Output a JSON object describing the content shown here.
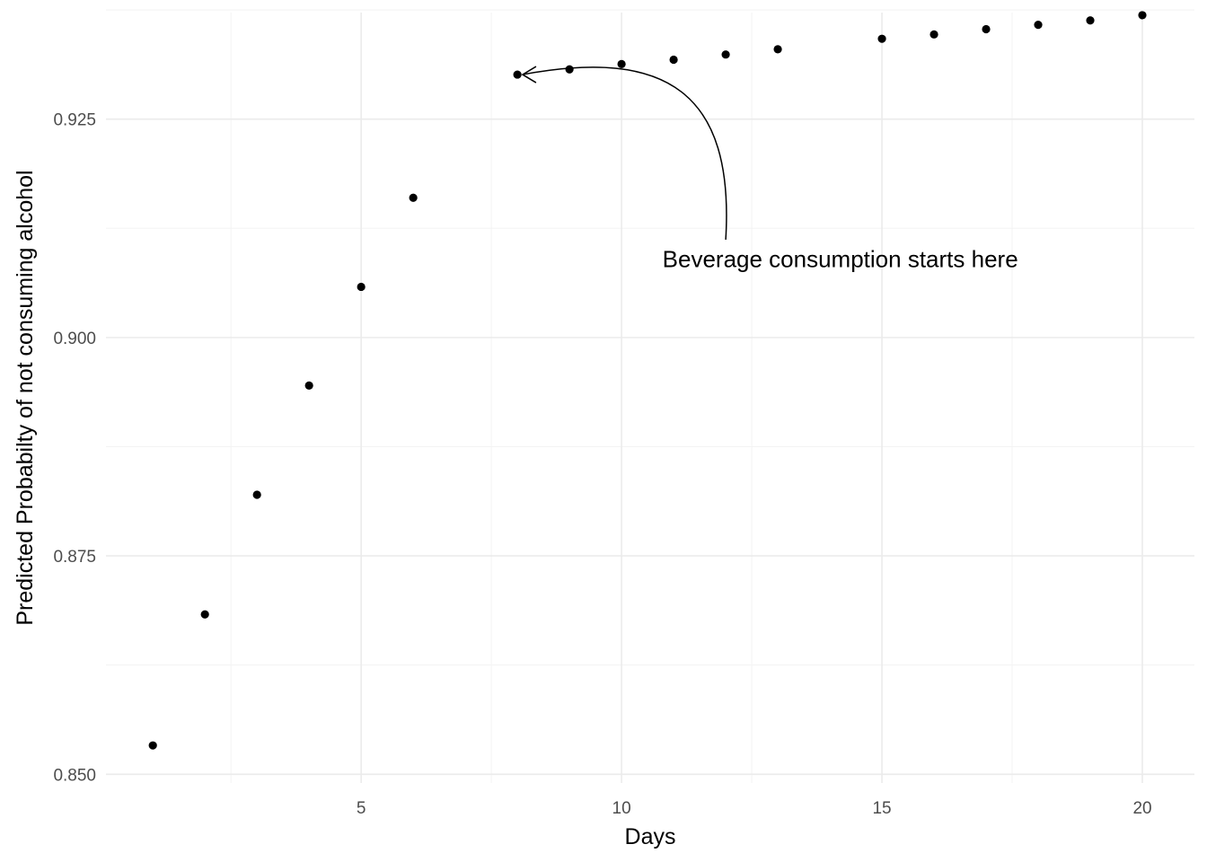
{
  "chart_data": {
    "type": "scatter",
    "title": "",
    "xlabel": "Days",
    "ylabel": "Predicted Probabilty of not consuming alcohol",
    "xlim": [
      0.1,
      21
    ],
    "ylim": [
      0.849,
      0.9372
    ],
    "x_ticks": [
      5,
      10,
      15,
      20
    ],
    "x_tick_labels": [
      "5",
      "10",
      "15",
      "20"
    ],
    "x_minor_ticks": [
      2.5,
      7.5,
      12.5,
      17.5
    ],
    "y_ticks": [
      0.85,
      0.875,
      0.9,
      0.925
    ],
    "y_tick_labels": [
      "0.850",
      "0.875",
      "0.900",
      "0.925"
    ],
    "y_minor_ticks": [
      0.8625,
      0.8875,
      0.9125,
      0.9375
    ],
    "grid": true,
    "legend": "none",
    "point_color": "#000000",
    "points": [
      {
        "x": 1,
        "y": 0.8533
      },
      {
        "x": 2,
        "y": 0.8683
      },
      {
        "x": 3,
        "y": 0.882
      },
      {
        "x": 4,
        "y": 0.8945
      },
      {
        "x": 5,
        "y": 0.9058
      },
      {
        "x": 6,
        "y": 0.916
      },
      {
        "x": 8,
        "y": 0.9301
      },
      {
        "x": 9,
        "y": 0.9307
      },
      {
        "x": 10,
        "y": 0.9313
      },
      {
        "x": 11,
        "y": 0.9318
      },
      {
        "x": 12,
        "y": 0.9324
      },
      {
        "x": 13,
        "y": 0.933
      },
      {
        "x": 15,
        "y": 0.9342
      },
      {
        "x": 16,
        "y": 0.9347
      },
      {
        "x": 17,
        "y": 0.9353
      },
      {
        "x": 18,
        "y": 0.9358
      },
      {
        "x": 19,
        "y": 0.9363
      },
      {
        "x": 20,
        "y": 0.9369
      }
    ],
    "annotation": {
      "text": "Beverage consumption starts here",
      "text_x": 14.2,
      "text_y": 0.909,
      "arrow_from": {
        "x": 12.0,
        "y": 0.9112
      },
      "arrow_to": {
        "x": 8.1,
        "y": 0.9301
      }
    }
  }
}
